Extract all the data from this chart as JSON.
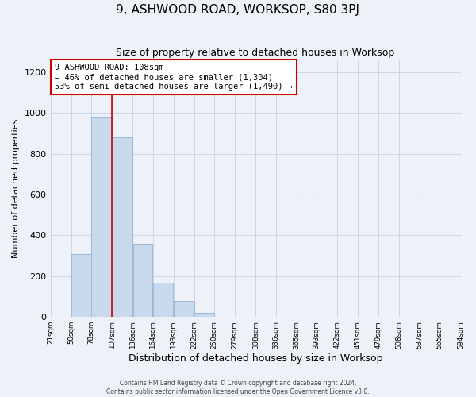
{
  "title": "9, ASHWOOD ROAD, WORKSOP, S80 3PJ",
  "subtitle": "Size of property relative to detached houses in Worksop",
  "xlabel": "Distribution of detached houses by size in Worksop",
  "ylabel": "Number of detached properties",
  "bin_edges": [
    21,
    50,
    78,
    107,
    136,
    164,
    193,
    222,
    250,
    279,
    308,
    336,
    365,
    393,
    422,
    451,
    479,
    508,
    537,
    565,
    594
  ],
  "bar_heights": [
    0,
    310,
    980,
    880,
    360,
    170,
    80,
    20,
    0,
    0,
    0,
    0,
    0,
    0,
    0,
    0,
    0,
    0,
    0,
    0
  ],
  "bar_color": "#c9d9ed",
  "bar_edgecolor": "#9dbad6",
  "tick_labels": [
    "21sqm",
    "50sqm",
    "78sqm",
    "107sqm",
    "136sqm",
    "164sqm",
    "193sqm",
    "222sqm",
    "250sqm",
    "279sqm",
    "308sqm",
    "336sqm",
    "365sqm",
    "393sqm",
    "422sqm",
    "451sqm",
    "479sqm",
    "508sqm",
    "537sqm",
    "565sqm",
    "594sqm"
  ],
  "ylim": [
    0,
    1260
  ],
  "yticks": [
    0,
    200,
    400,
    600,
    800,
    1000,
    1200
  ],
  "property_line_x": 107,
  "annotation_title": "9 ASHWOOD ROAD: 108sqm",
  "annotation_line1": "← 46% of detached houses are smaller (1,304)",
  "annotation_line2": "53% of semi-detached houses are larger (1,490) →",
  "annotation_box_facecolor": "#ffffff",
  "annotation_box_edgecolor": "#cc0000",
  "red_line_color": "#cc0000",
  "grid_color": "#ccd6e8",
  "bg_color": "#eef2f8",
  "footnote1": "Contains HM Land Registry data © Crown copyright and database right 2024.",
  "footnote2": "Contains public sector information licensed under the Open Government Licence v3.0."
}
